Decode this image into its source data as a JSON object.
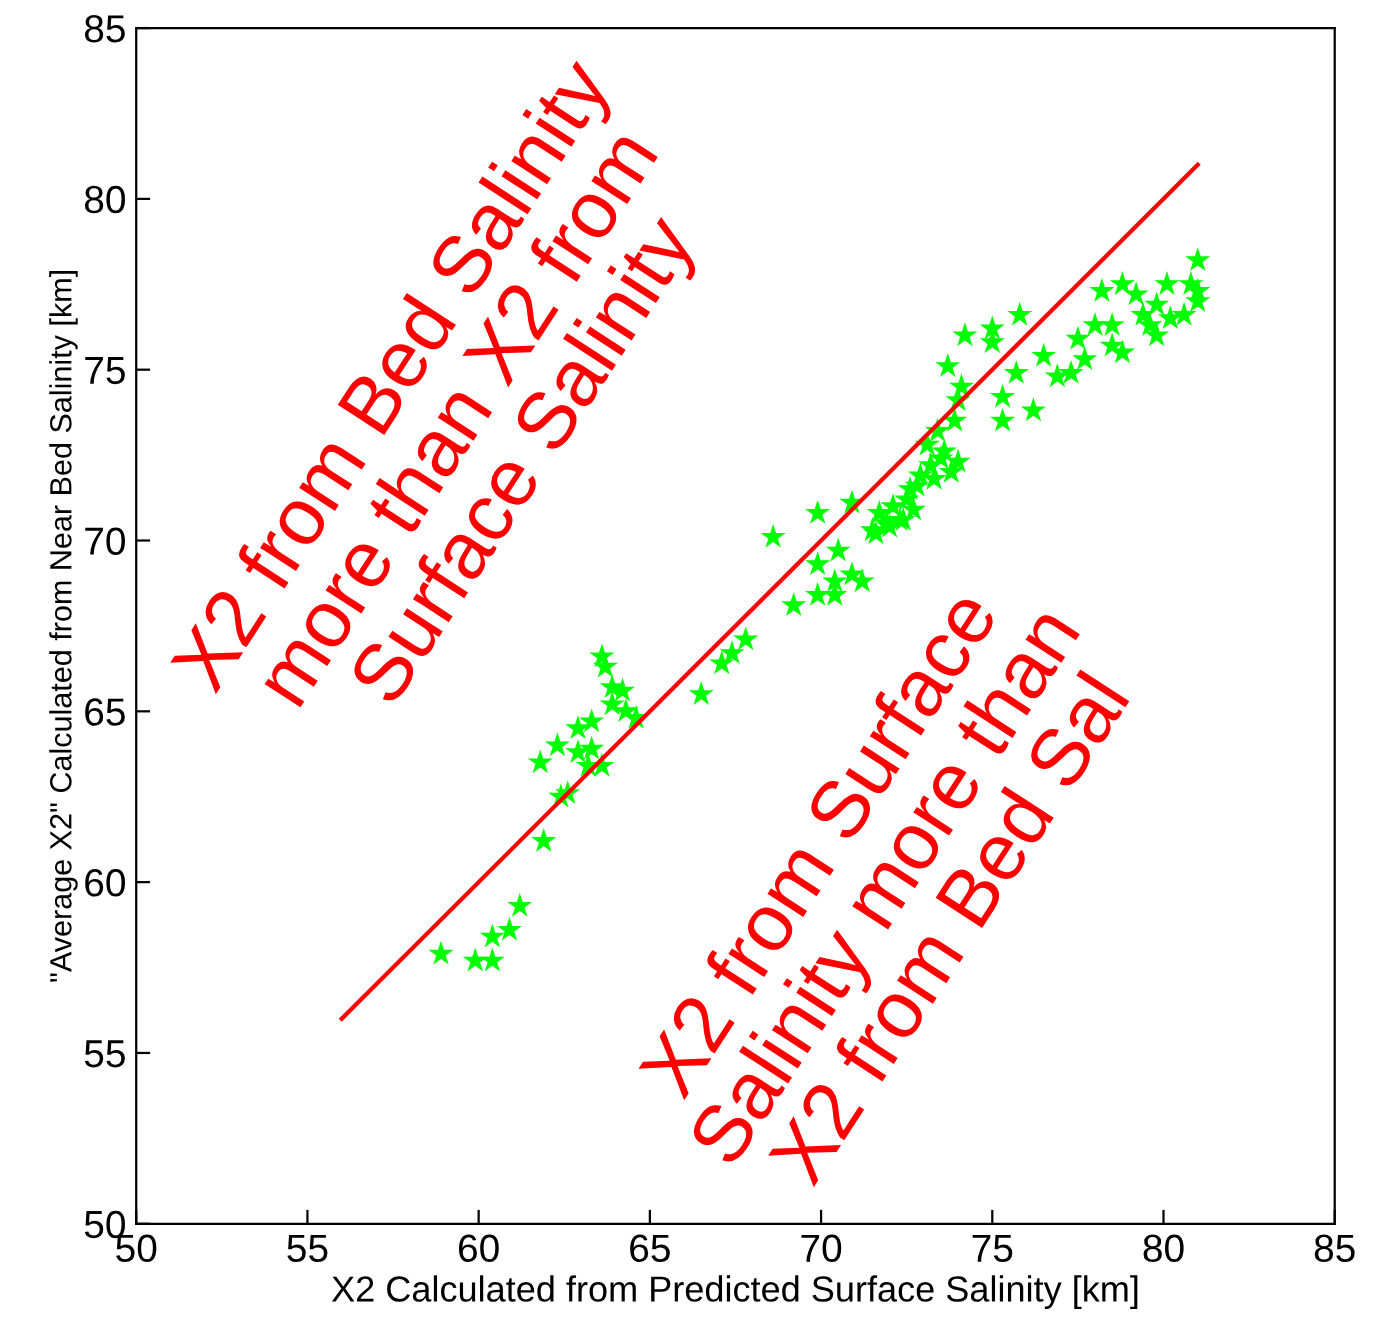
{
  "chart_data": {
    "type": "scatter",
    "xlabel": "X2 Calculated from Predicted Surface Salinity [km]",
    "ylabel": "\"Average X2\" Calculated from Near Bed Salinity [km]",
    "xlim": [
      50,
      85
    ],
    "ylim": [
      50,
      85
    ],
    "xticks": [
      50,
      55,
      60,
      65,
      70,
      75,
      80,
      85
    ],
    "yticks": [
      50,
      55,
      60,
      65,
      70,
      75,
      80,
      85
    ],
    "grid": false,
    "marker": "star",
    "series": [
      {
        "color": "#00ff00",
        "x": [
          58.9,
          59.9,
          60.4,
          60.4,
          60.9,
          61.2,
          61.9,
          62.4,
          62.6,
          61.8,
          62.3,
          62.9,
          63.3,
          62.9,
          63.3,
          63.2,
          63.6,
          63.6,
          63.7,
          63.9,
          64.2,
          63.9,
          64.3,
          64.6,
          66.5,
          67.1,
          67.4,
          67.8,
          68.6,
          69.2,
          69.9,
          69.9,
          69.9,
          70.4,
          70.4,
          70.5,
          70.9,
          71.2,
          70.9,
          71.5,
          71.7,
          71.9,
          72.1,
          72.3,
          72.5,
          72.7,
          71.6,
          72.0,
          72.4,
          72.6,
          72.9,
          73.2,
          73.5,
          73.8,
          72.8,
          73.1,
          73.4,
          73.6,
          73.9,
          74.0,
          73.3,
          73.7,
          74.2,
          75.0,
          75.0,
          74.1,
          74.0,
          75.3,
          75.3,
          76.2,
          75.7,
          75.8,
          76.5,
          76.9,
          77.3,
          77.7,
          77.5,
          78.0,
          78.5,
          78.5,
          78.8,
          78.2,
          78.8,
          79.2,
          79.4,
          79.8,
          80.2,
          79.6,
          79.8,
          80.6,
          81.0,
          80.1,
          80.8,
          81.0,
          81.0
        ],
        "values": [
          57.9,
          57.7,
          57.7,
          58.4,
          58.6,
          59.3,
          61.2,
          62.5,
          62.6,
          63.5,
          64.0,
          64.5,
          64.7,
          63.8,
          63.9,
          63.4,
          63.4,
          66.6,
          66.3,
          65.7,
          65.6,
          65.2,
          65.0,
          64.8,
          65.5,
          66.4,
          66.7,
          67.1,
          70.1,
          68.1,
          70.8,
          69.3,
          68.4,
          68.8,
          68.4,
          69.7,
          69.0,
          68.8,
          71.1,
          70.3,
          70.8,
          70.5,
          71.0,
          70.6,
          71.2,
          70.9,
          70.2,
          70.4,
          70.6,
          71.5,
          71.9,
          72.2,
          72.4,
          72.0,
          71.6,
          72.8,
          73.2,
          72.6,
          73.5,
          72.3,
          71.8,
          75.1,
          76.0,
          76.2,
          75.8,
          74.5,
          74.1,
          74.2,
          73.5,
          73.8,
          74.9,
          76.6,
          75.4,
          74.8,
          74.9,
          75.3,
          75.9,
          76.3,
          76.3,
          75.7,
          75.5,
          77.3,
          77.5,
          77.2,
          76.6,
          76.9,
          76.5,
          76.3,
          76.0,
          76.6,
          77.0,
          77.5,
          77.5,
          77.3,
          78.2
        ]
      },
      {
        "type": "line",
        "color": "#ff0000",
        "x": [
          56,
          81
        ],
        "values": [
          56,
          81
        ],
        "marker": "none"
      }
    ],
    "annotations": [
      "X2 from Bed Salinity\nmore than X2 from\nSurface Salinity",
      "X2 from Surface\nSalinity more than\nX2 from Bed Sal"
    ]
  }
}
